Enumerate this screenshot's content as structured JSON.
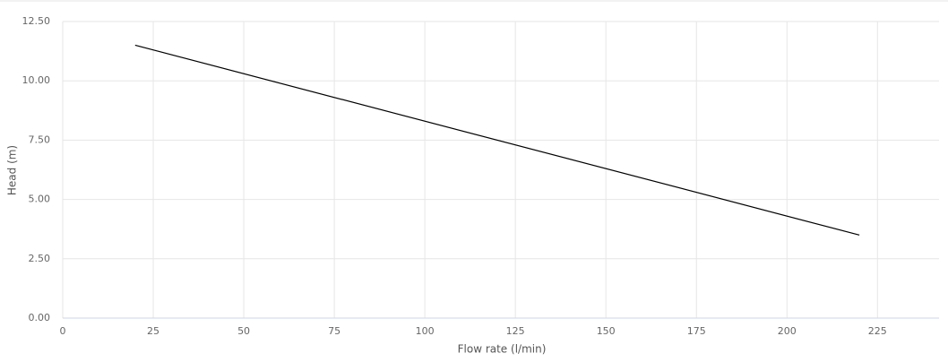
{
  "chart_data": {
    "type": "line",
    "x_label": "Flow rate (l/min)",
    "y_label": "Head (m)",
    "x": [
      20,
      220
    ],
    "series": [
      {
        "color": "#000000",
        "values": [
          11.5,
          3.5
        ]
      }
    ],
    "xlim": [
      0,
      242
    ],
    "xticks": [
      0,
      25,
      50,
      75,
      100,
      125,
      150,
      175,
      200,
      225
    ],
    "ylim": [
      0,
      12.5
    ],
    "yticks": [
      {
        "value": 0,
        "label": "0.00"
      },
      {
        "value": 2.5,
        "label": "2.50"
      },
      {
        "value": 5,
        "label": "5.00"
      },
      {
        "value": 7.5,
        "label": "7.50"
      },
      {
        "value": 10,
        "label": "10.00"
      },
      {
        "value": 12.5,
        "label": "12.50"
      }
    ],
    "grid": true
  }
}
